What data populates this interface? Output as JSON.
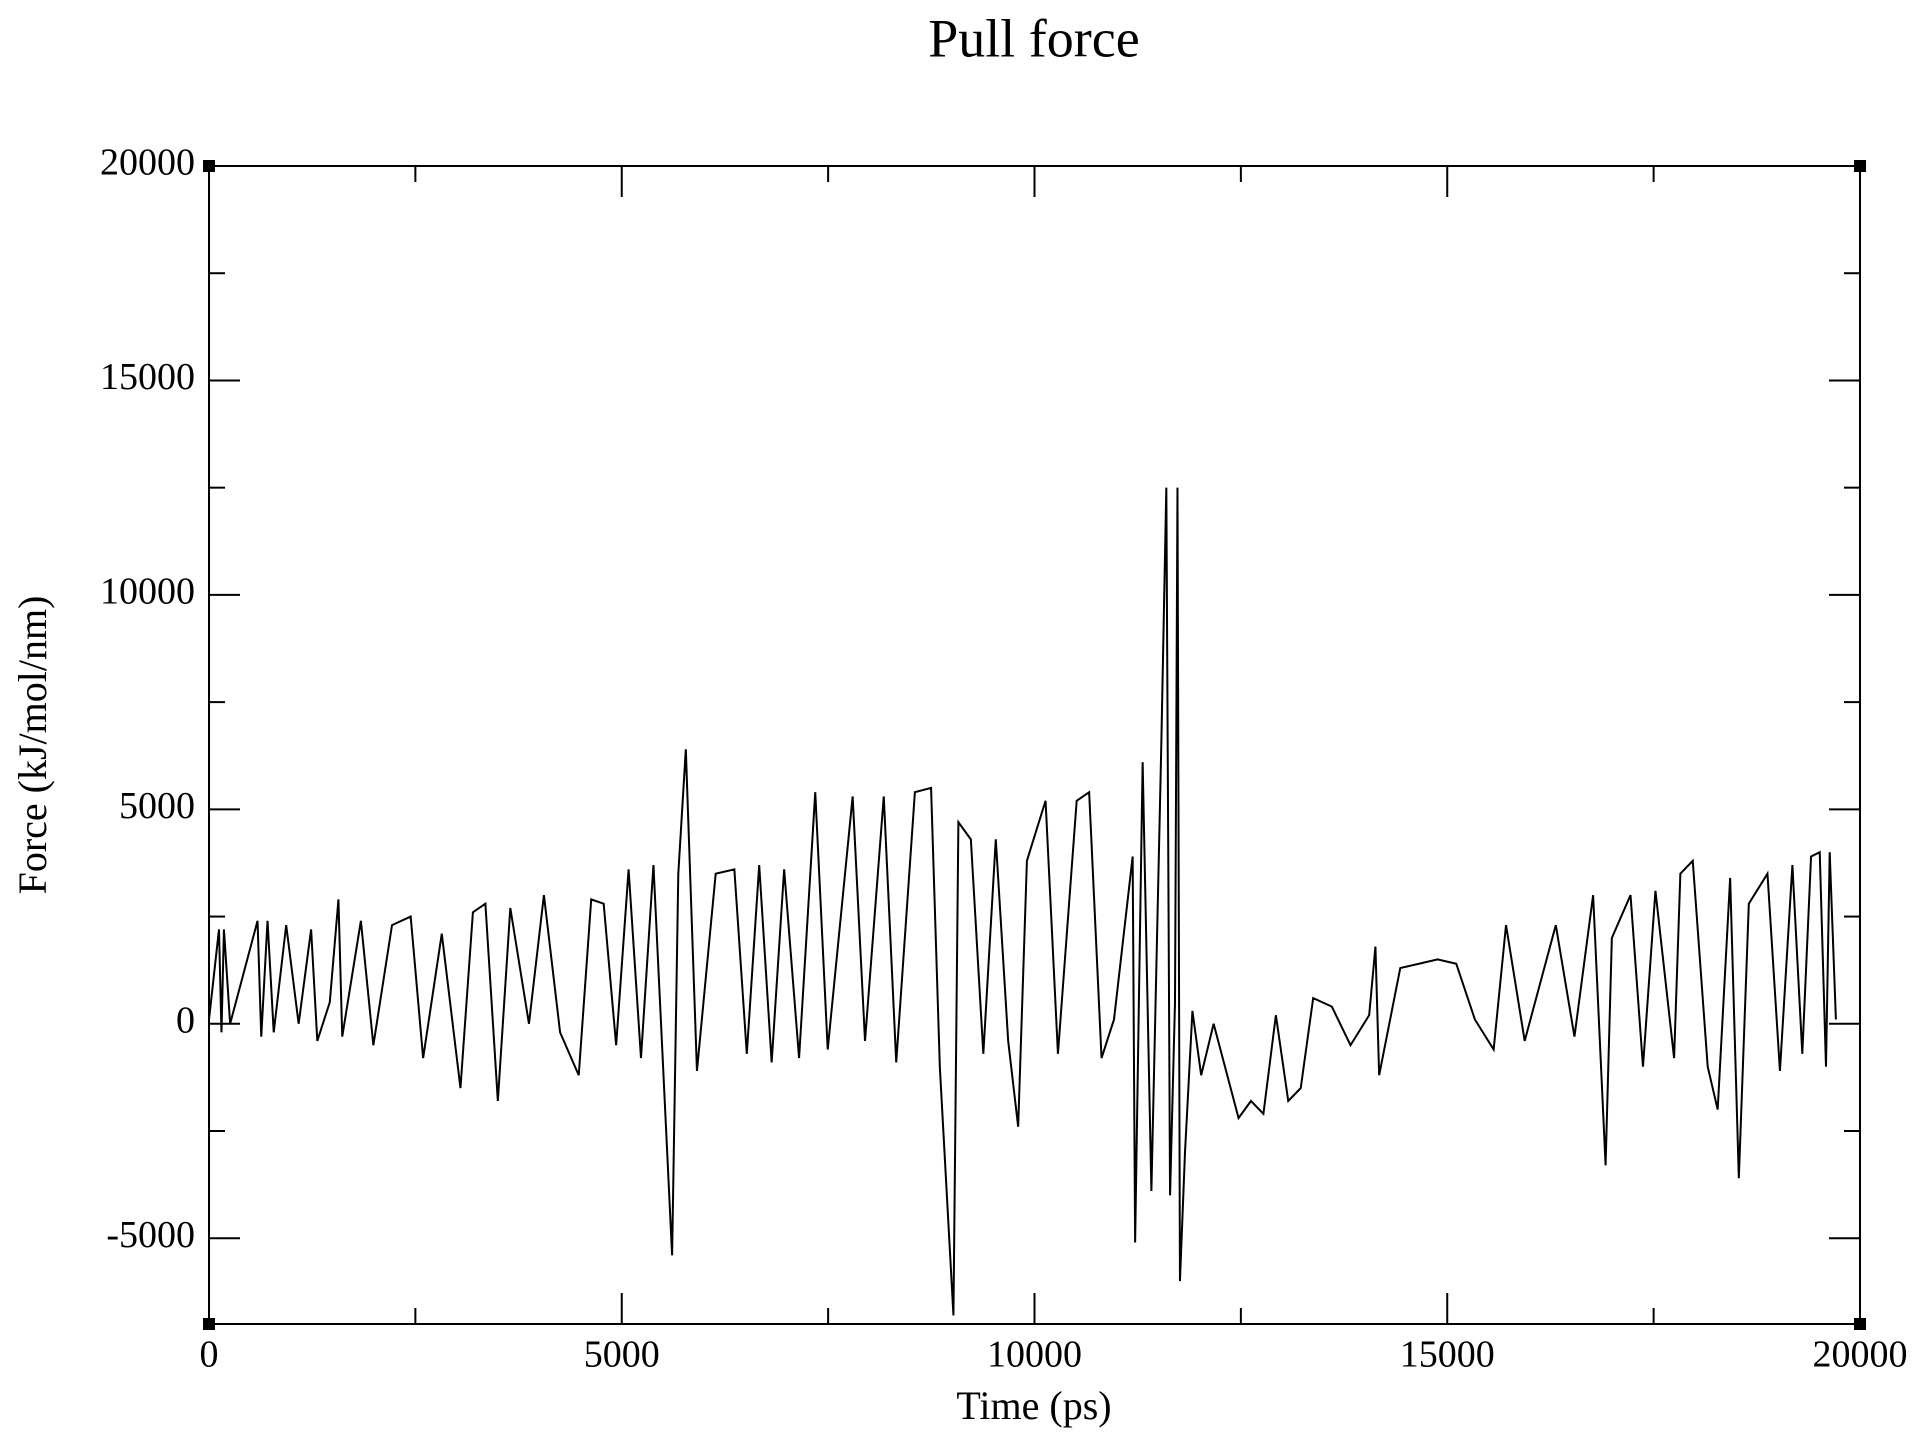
{
  "chart_data": {
    "type": "line",
    "title": "Pull force",
    "x_label": "Time (ps)",
    "y_label": "Force (kJ/mol/nm)",
    "xlim": [
      0,
      20000
    ],
    "ylim": [
      -7000,
      20000
    ],
    "xticks": [
      0,
      5000,
      10000,
      15000,
      20000
    ],
    "yticks": [
      -5000,
      0,
      5000,
      10000,
      15000,
      20000
    ],
    "x_minor_ticks": [
      2500,
      7500,
      12500,
      17500
    ],
    "y_minor_ticks": [
      -2500,
      2500,
      7500,
      12500,
      17500
    ],
    "grid": false,
    "series": [
      {
        "color": "#000000",
        "x": [
          0,
          121,
          151,
          181,
          256,
          588,
          633,
          709,
          784,
          935,
          1086,
          1237,
          1312,
          1463,
          1568,
          1614,
          1840,
          1991,
          2217,
          2443,
          2594,
          2820,
          3046,
          3197,
          3348,
          3499,
          3650,
          3876,
          4057,
          4253,
          4479,
          4630,
          4781,
          4932,
          5083,
          5233,
          5384,
          5610,
          5685,
          5776,
          5911,
          6138,
          6364,
          6515,
          6665,
          6816,
          6967,
          7148,
          7344,
          7495,
          7797,
          7947,
          8174,
          8325,
          8551,
          8747,
          8853,
          9018,
          9078,
          9229,
          9380,
          9531,
          9681,
          9802,
          9908,
          10134,
          10284,
          10511,
          10662,
          10812,
          10963,
          11189,
          11219,
          11310,
          11416,
          11536,
          11597,
          11642,
          11702,
          11732,
          11762,
          11823,
          11913,
          12019,
          12170,
          12472,
          12622,
          12773,
          12924,
          13074,
          13225,
          13376,
          13602,
          13828,
          14054,
          14130,
          14175,
          14431,
          14657,
          14883,
          15109,
          15335,
          15562,
          15712,
          15938,
          16315,
          16541,
          16767,
          16918,
          16994,
          17220,
          17371,
          17522,
          17748,
          17824,
          17974,
          18155,
          18276,
          18427,
          18532,
          18653,
          18879,
          19030,
          19181,
          19301,
          19407,
          19512,
          19588,
          19633,
          19708
        ],
        "values": [
          100,
          2200,
          -200,
          2200,
          0,
          2400,
          -300,
          2400,
          -200,
          2300,
          0,
          2200,
          -400,
          500,
          2900,
          -300,
          2400,
          -500,
          2300,
          2500,
          -800,
          2100,
          -1500,
          2600,
          2800,
          -1800,
          2700,
          0,
          3000,
          -200,
          -1200,
          2900,
          2800,
          -500,
          3600,
          -800,
          3700,
          -5400,
          3500,
          6400,
          -1100,
          3500,
          3600,
          -700,
          3700,
          -900,
          3600,
          -800,
          5400,
          -600,
          5300,
          -400,
          5300,
          -900,
          5400,
          5500,
          -1000,
          -6800,
          4700,
          4300,
          -700,
          4300,
          -400,
          -2400,
          3800,
          5200,
          -700,
          5200,
          5400,
          -800,
          100,
          3900,
          -5100,
          6100,
          -3900,
          6500,
          12500,
          -4000,
          500,
          12500,
          -6000,
          -3000,
          300,
          -1200,
          0,
          -2200,
          -1800,
          -2100,
          200,
          -1800,
          -1500,
          600,
          400,
          -500,
          200,
          1800,
          -1200,
          1300,
          1400,
          1500,
          1400,
          100,
          -600,
          2300,
          -400,
          2300,
          -300,
          3000,
          -3300,
          2000,
          3000,
          -1000,
          3100,
          -800,
          3500,
          3800,
          -1000,
          -2000,
          3400,
          -3600,
          2800,
          3500,
          -1100,
          3700,
          -700,
          3900,
          4000,
          -1000,
          4000,
          100
        ]
      }
    ]
  }
}
